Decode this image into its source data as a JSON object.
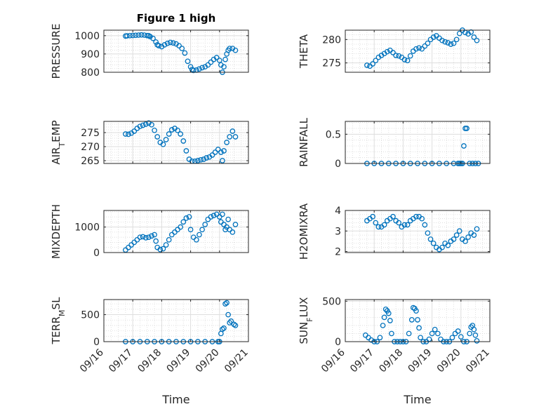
{
  "figure": {
    "title": "Figure 1 high",
    "background": "#ffffff",
    "marker_color": "#0072BD"
  },
  "chart_data": [
    {
      "type": "scatter",
      "title": "Figure 1 high",
      "ylabel": "PRESSURE",
      "ylim": [
        800,
        1030
      ],
      "yticks": [
        800,
        900,
        1000
      ],
      "xlim": [
        0,
        5
      ],
      "grid": true,
      "x": [
        0.75,
        0.8,
        0.9,
        1.0,
        1.1,
        1.2,
        1.3,
        1.4,
        1.5,
        1.55,
        1.6,
        1.7,
        1.8,
        1.85,
        1.9,
        2.0,
        2.1,
        2.2,
        2.3,
        2.4,
        2.5,
        2.6,
        2.7,
        2.8,
        2.9,
        3.0,
        3.05,
        3.1,
        3.2,
        3.3,
        3.4,
        3.5,
        3.6,
        3.7,
        3.8,
        3.9,
        4.0,
        4.05,
        4.1,
        4.15,
        4.2,
        4.25,
        4.3,
        4.35,
        4.45,
        4.55
      ],
      "values": [
        998,
        999,
        1000,
        1001,
        1002,
        1003,
        1004,
        1003,
        1000,
        1000,
        995,
        985,
        965,
        950,
        945,
        940,
        950,
        958,
        963,
        960,
        955,
        945,
        930,
        905,
        860,
        830,
        815,
        810,
        812,
        818,
        825,
        830,
        840,
        855,
        870,
        880,
        865,
        840,
        800,
        830,
        870,
        900,
        920,
        930,
        930,
        920
      ]
    },
    {
      "type": "scatter",
      "ylabel": "THETA",
      "ylim": [
        273,
        282
      ],
      "yticks": [
        275,
        280
      ],
      "xlim": [
        0,
        5
      ],
      "grid": true,
      "x": [
        0.75,
        0.85,
        0.95,
        1.05,
        1.15,
        1.25,
        1.35,
        1.45,
        1.55,
        1.65,
        1.75,
        1.85,
        1.95,
        2.05,
        2.15,
        2.25,
        2.35,
        2.45,
        2.55,
        2.65,
        2.75,
        2.85,
        2.95,
        3.05,
        3.15,
        3.25,
        3.35,
        3.45,
        3.55,
        3.65,
        3.75,
        3.85,
        3.95,
        4.05,
        4.15,
        4.25,
        4.35,
        4.45,
        4.55
      ],
      "values": [
        274.5,
        274.3,
        274.8,
        275.5,
        276.2,
        276.6,
        277.0,
        277.4,
        277.7,
        277.2,
        276.6,
        276.5,
        276.2,
        275.7,
        275.5,
        276.5,
        277.5,
        278.0,
        278.2,
        278.0,
        278.6,
        279.2,
        280.0,
        280.5,
        280.8,
        280.3,
        279.8,
        279.5,
        279.3,
        279.0,
        279.2,
        280.0,
        281.3,
        282.0,
        281.5,
        281.2,
        281.6,
        280.5,
        279.8
      ]
    },
    {
      "type": "scatter",
      "ylabel": "AIR_TEMP",
      "ylim": [
        264,
        279
      ],
      "yticks": [
        265,
        270,
        275
      ],
      "xlim": [
        0,
        5
      ],
      "grid": true,
      "x": [
        0.75,
        0.85,
        0.95,
        1.05,
        1.15,
        1.25,
        1.35,
        1.45,
        1.55,
        1.65,
        1.75,
        1.85,
        1.95,
        2.05,
        2.15,
        2.25,
        2.35,
        2.45,
        2.55,
        2.65,
        2.75,
        2.85,
        2.95,
        3.05,
        3.15,
        3.25,
        3.35,
        3.45,
        3.55,
        3.65,
        3.75,
        3.85,
        3.95,
        4.05,
        4.1,
        4.15,
        4.25,
        4.35,
        4.45,
        4.55
      ],
      "values": [
        274.5,
        274.4,
        274.8,
        275.5,
        276.5,
        277.2,
        277.6,
        278.0,
        278.4,
        277.8,
        275.8,
        273.5,
        271.5,
        270.8,
        272.5,
        274.5,
        276.0,
        276.5,
        275.8,
        274.5,
        272.0,
        268.5,
        265.5,
        264.8,
        264.8,
        265.0,
        265.3,
        265.5,
        266.0,
        266.3,
        267.0,
        268.0,
        269.0,
        268.0,
        265.0,
        268.5,
        271.5,
        273.5,
        275.5,
        273.5
      ]
    },
    {
      "type": "scatter",
      "ylabel": "RAINFALL",
      "ylim": [
        0,
        0.72
      ],
      "yticks": [
        0,
        0.5
      ],
      "xlim": [
        0,
        5
      ],
      "grid": true,
      "x": [
        0.75,
        1.0,
        1.25,
        1.5,
        1.75,
        2.0,
        2.25,
        2.5,
        2.75,
        3.0,
        3.25,
        3.5,
        3.75,
        3.9,
        3.95,
        4.0,
        4.05,
        4.1,
        4.15,
        4.2,
        4.3,
        4.4,
        4.5,
        4.6
      ],
      "values": [
        0,
        0,
        0,
        0,
        0,
        0,
        0,
        0,
        0,
        0,
        0,
        0,
        0,
        0,
        0,
        0,
        0,
        0.3,
        0.6,
        0.6,
        0,
        0,
        0,
        0
      ]
    },
    {
      "type": "scatter",
      "ylabel": "MIXDEPTH",
      "ylim": [
        0,
        1650
      ],
      "yticks": [
        0,
        1000
      ],
      "xlim": [
        0,
        5
      ],
      "grid": true,
      "x": [
        0.75,
        0.85,
        0.95,
        1.05,
        1.15,
        1.25,
        1.35,
        1.45,
        1.55,
        1.65,
        1.75,
        1.8,
        1.85,
        1.95,
        2.05,
        2.15,
        2.25,
        2.35,
        2.45,
        2.55,
        2.65,
        2.75,
        2.85,
        2.95,
        3.0,
        3.1,
        3.2,
        3.3,
        3.4,
        3.5,
        3.6,
        3.7,
        3.8,
        3.9,
        4.0,
        4.05,
        4.1,
        4.15,
        4.2,
        4.25,
        4.3,
        4.35,
        4.45,
        4.55
      ],
      "values": [
        100,
        200,
        300,
        400,
        500,
        600,
        620,
        580,
        600,
        650,
        700,
        450,
        200,
        120,
        150,
        300,
        500,
        700,
        800,
        900,
        1000,
        1200,
        1350,
        1400,
        900,
        600,
        500,
        700,
        900,
        1100,
        1300,
        1400,
        1450,
        1500,
        1400,
        1200,
        1500,
        1100,
        900,
        1000,
        1300,
        900,
        800,
        1100
      ]
    },
    {
      "type": "scatter",
      "ylabel": "H2OMIXRA",
      "ylim": [
        1.95,
        4.0
      ],
      "yticks": [
        2,
        3,
        4
      ],
      "xlim": [
        0,
        5
      ],
      "grid": true,
      "x": [
        0.75,
        0.85,
        0.95,
        1.05,
        1.15,
        1.25,
        1.35,
        1.45,
        1.55,
        1.65,
        1.75,
        1.85,
        1.95,
        2.05,
        2.15,
        2.25,
        2.35,
        2.45,
        2.55,
        2.65,
        2.75,
        2.85,
        2.95,
        3.05,
        3.15,
        3.25,
        3.35,
        3.45,
        3.55,
        3.65,
        3.75,
        3.85,
        3.95,
        4.05,
        4.15,
        4.25,
        4.35,
        4.45,
        4.55
      ],
      "values": [
        3.5,
        3.6,
        3.7,
        3.4,
        3.2,
        3.2,
        3.3,
        3.5,
        3.6,
        3.7,
        3.5,
        3.4,
        3.2,
        3.3,
        3.3,
        3.5,
        3.6,
        3.7,
        3.7,
        3.6,
        3.3,
        2.9,
        2.6,
        2.4,
        2.2,
        2.1,
        2.2,
        2.4,
        2.3,
        2.5,
        2.6,
        2.8,
        3.0,
        2.6,
        2.5,
        2.7,
        2.9,
        2.8,
        3.1
      ]
    },
    {
      "type": "scatter",
      "ylabel": "TERR_MSL",
      "ylim": [
        0,
        780
      ],
      "yticks": [
        0,
        500
      ],
      "xlim": [
        0,
        5
      ],
      "grid": true,
      "x": [
        0.75,
        1.0,
        1.25,
        1.5,
        1.75,
        2.0,
        2.25,
        2.5,
        2.75,
        3.0,
        3.25,
        3.5,
        3.75,
        3.95,
        4.0,
        4.05,
        4.1,
        4.15,
        4.2,
        4.25,
        4.3,
        4.35,
        4.4,
        4.5,
        4.55
      ],
      "values": [
        0,
        0,
        0,
        0,
        0,
        0,
        0,
        0,
        0,
        0,
        0,
        0,
        0,
        0,
        0,
        150,
        230,
        250,
        700,
        720,
        500,
        350,
        380,
        320,
        300
      ]
    },
    {
      "type": "scatter",
      "ylabel": "SUN_FLUX",
      "ylim": [
        0,
        520
      ],
      "yticks": [
        0,
        500
      ],
      "xlim": [
        0,
        5
      ],
      "grid": true,
      "x": [
        0.7,
        0.8,
        0.9,
        1.0,
        1.1,
        1.2,
        1.3,
        1.35,
        1.4,
        1.45,
        1.5,
        1.55,
        1.6,
        1.7,
        1.8,
        1.9,
        2.0,
        2.1,
        2.2,
        2.3,
        2.35,
        2.4,
        2.45,
        2.5,
        2.55,
        2.6,
        2.7,
        2.8,
        2.9,
        3.0,
        3.1,
        3.2,
        3.3,
        3.4,
        3.5,
        3.6,
        3.7,
        3.8,
        3.9,
        4.0,
        4.1,
        4.2,
        4.3,
        4.35,
        4.4,
        4.45,
        4.5,
        4.55
      ],
      "values": [
        80,
        50,
        20,
        0,
        0,
        50,
        200,
        300,
        400,
        380,
        350,
        260,
        100,
        0,
        0,
        0,
        0,
        0,
        100,
        270,
        420,
        410,
        380,
        270,
        170,
        50,
        0,
        0,
        30,
        100,
        150,
        100,
        30,
        0,
        0,
        0,
        50,
        100,
        130,
        60,
        0,
        0,
        100,
        180,
        200,
        150,
        80,
        10
      ]
    }
  ],
  "x_axis": {
    "ticks": [
      "09/16",
      "09/17",
      "09/18",
      "09/19",
      "09/20",
      "09/21"
    ],
    "label": "Time"
  }
}
